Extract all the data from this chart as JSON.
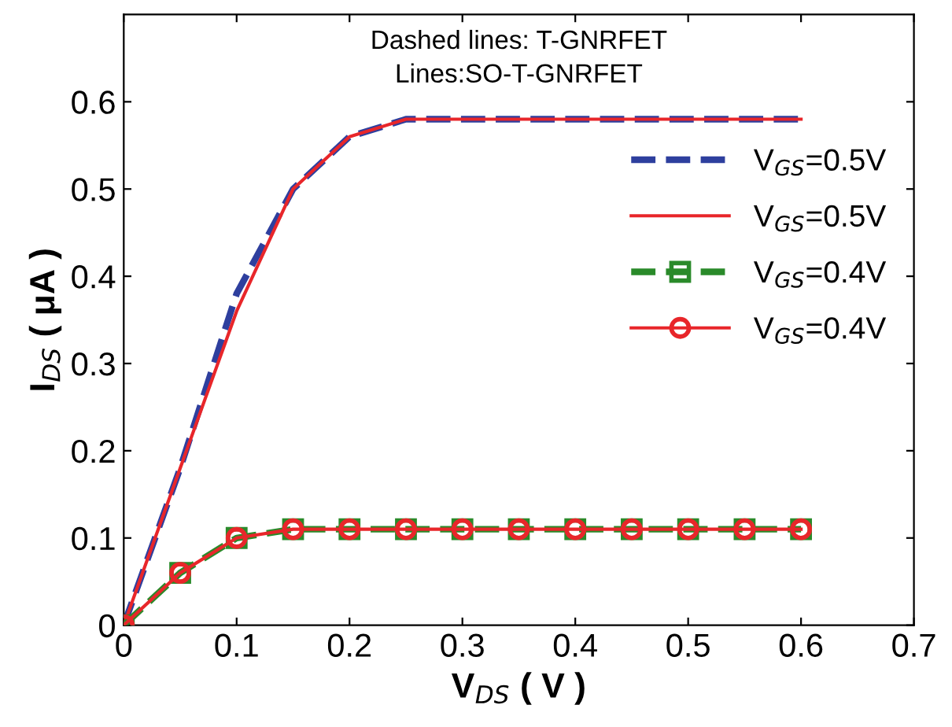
{
  "chart_data": {
    "type": "line",
    "x": [
      0,
      0.05,
      0.1,
      0.15,
      0.2,
      0.25,
      0.3,
      0.35,
      0.4,
      0.45,
      0.5,
      0.55,
      0.6
    ],
    "series": [
      {
        "name": "V$_{GS}$=0.5V",
        "color": "#2e3f9e",
        "line_style": "dashed",
        "marker": "none",
        "values": [
          0,
          0.18,
          0.38,
          0.5,
          0.56,
          0.58,
          0.58,
          0.58,
          0.58,
          0.58,
          0.58,
          0.58,
          0.58
        ]
      },
      {
        "name": "V$_{GS}$=0.5V",
        "color": "#e8262a",
        "line_style": "solid",
        "marker": "none",
        "values": [
          0,
          0.18,
          0.36,
          0.5,
          0.56,
          0.58,
          0.58,
          0.58,
          0.58,
          0.58,
          0.58,
          0.58,
          0.58
        ]
      },
      {
        "name": "V$_{GS}$=0.4V",
        "color": "#2a8a2a",
        "line_style": "dashed",
        "marker": "square",
        "values": [
          0,
          0.06,
          0.1,
          0.11,
          0.11,
          0.11,
          0.11,
          0.11,
          0.11,
          0.11,
          0.11,
          0.11,
          0.11
        ]
      },
      {
        "name": "V$_{GS}$=0.4V",
        "color": "#e8262a",
        "line_style": "solid",
        "marker": "circle",
        "values": [
          0,
          0.06,
          0.1,
          0.11,
          0.11,
          0.11,
          0.11,
          0.11,
          0.11,
          0.11,
          0.11,
          0.11,
          0.11
        ]
      }
    ],
    "xlabel": "V$_{DS}$ ( V )",
    "ylabel": "I$_{DS}$ ( μA )",
    "xlim": [
      0,
      0.7
    ],
    "xticks": [
      0,
      0.1,
      0.2,
      0.3,
      0.4,
      0.5,
      0.6,
      0.7
    ],
    "ylim": [
      0,
      0.7
    ],
    "yticks": [
      0,
      0.1,
      0.2,
      0.3,
      0.4,
      0.5,
      0.6
    ],
    "annotations": [
      "Dashed lines: T-GNRFET",
      "Lines:SO-T-GNRFET"
    ],
    "grid": false,
    "legend": "right"
  }
}
